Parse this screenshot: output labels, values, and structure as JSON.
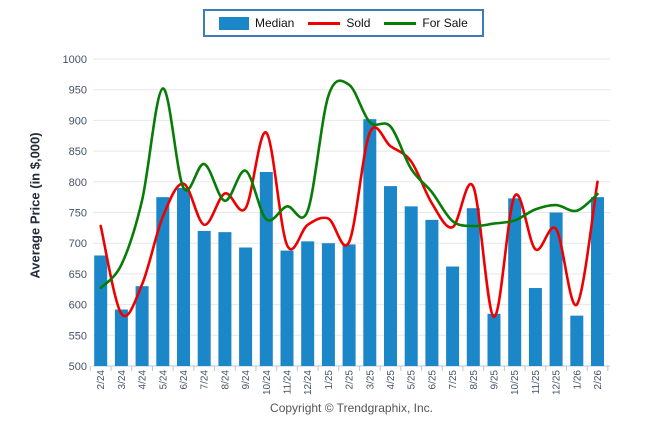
{
  "legend": {
    "items": [
      {
        "label": "Median",
        "type": "bar",
        "color": "#1B87C9"
      },
      {
        "label": "Sold",
        "type": "line",
        "color": "#EE0000"
      },
      {
        "label": "For Sale",
        "type": "line",
        "color": "#077C07"
      }
    ]
  },
  "footer": {
    "copyright": "Copyright © Trendgraphix, Inc."
  },
  "chart_data": {
    "type": "bar+line",
    "title": "",
    "xlabel": "",
    "ylabel": "Average Price (in $,000)",
    "ylim": [
      500,
      1000
    ],
    "ytick_step": 50,
    "yticks": [
      500,
      550,
      600,
      650,
      700,
      750,
      800,
      850,
      900,
      950,
      1000
    ],
    "grid": true,
    "legend_position": "top-center",
    "categories": [
      "2/24",
      "3/24",
      "4/24",
      "5/24",
      "6/24",
      "7/24",
      "8/24",
      "9/24",
      "10/24",
      "11/24",
      "12/24",
      "1/25",
      "2/25",
      "3/25",
      "4/25",
      "5/25",
      "6/25",
      "7/25",
      "8/25",
      "9/25",
      "10/25",
      "11/25",
      "12/25",
      "1/26",
      "2/26"
    ],
    "series": [
      {
        "name": "Median",
        "type": "bar",
        "color": "#1B87C9",
        "values": [
          680,
          592,
          630,
          775,
          790,
          720,
          718,
          693,
          816,
          688,
          703,
          700,
          698,
          902,
          793,
          760,
          738,
          662,
          757,
          585,
          773,
          627,
          750,
          582,
          775
        ]
      },
      {
        "name": "Sold",
        "type": "line",
        "color": "#EE0000",
        "values": [
          728,
          585,
          633,
          743,
          797,
          730,
          781,
          757,
          880,
          697,
          730,
          740,
          702,
          880,
          858,
          833,
          765,
          726,
          792,
          580,
          777,
          690,
          723,
          600,
          800
        ]
      },
      {
        "name": "For Sale",
        "type": "line",
        "color": "#077C07",
        "values": [
          627,
          665,
          770,
          952,
          790,
          829,
          769,
          818,
          739,
          760,
          753,
          940,
          958,
          897,
          890,
          821,
          783,
          736,
          728,
          732,
          737,
          755,
          762,
          753,
          780
        ]
      }
    ],
    "colors": {
      "grid": "#e7e7e7",
      "axis": "#b5c7dc",
      "tick_label": "#44546A",
      "y_title": "#222c3a",
      "legend_border": "#3E7CB8",
      "copyright": "#555555"
    }
  }
}
